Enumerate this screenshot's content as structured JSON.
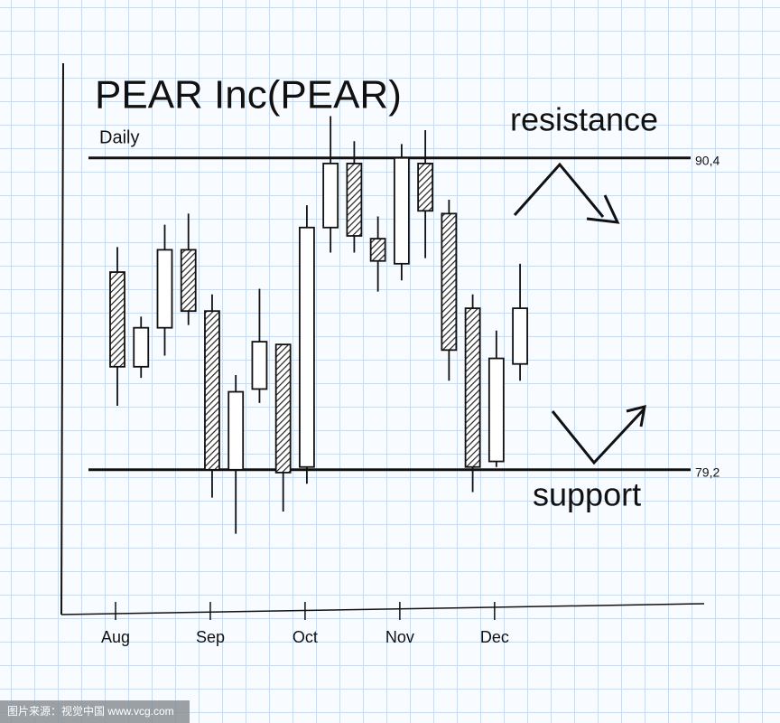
{
  "chart_data": {
    "type": "candlestick",
    "title": "PEAR Inc(PEAR)",
    "subtitle": "Daily",
    "categories": [
      "Aug",
      null,
      null,
      null,
      "Sep",
      null,
      null,
      null,
      "Oct",
      null,
      null,
      null,
      "Nov",
      null,
      null,
      null,
      "Dec",
      null
    ],
    "open": [
      86.3,
      82.9,
      84.3,
      87.1,
      84.9,
      79.2,
      82.1,
      83.7,
      79.3,
      87.9,
      90.2,
      87.5,
      86.6,
      90.2,
      88.4,
      85.0,
      79.5,
      83.0
    ],
    "high": [
      87.2,
      84.7,
      88.0,
      88.4,
      85.5,
      82.6,
      85.7,
      83.7,
      88.7,
      91.9,
      91.0,
      88.3,
      90.9,
      91.4,
      88.9,
      85.5,
      84.2,
      86.6
    ],
    "low": [
      81.5,
      82.5,
      83.3,
      84.4,
      78.2,
      76.9,
      81.6,
      77.7,
      78.7,
      87.0,
      87.0,
      85.6,
      86.0,
      86.8,
      82.4,
      78.4,
      79.3,
      82.4
    ],
    "close": [
      82.9,
      84.3,
      87.1,
      84.9,
      79.2,
      82.0,
      83.8,
      79.1,
      87.9,
      90.2,
      87.6,
      86.7,
      90.4,
      88.5,
      83.5,
      79.3,
      83.2,
      85.0
    ],
    "up_color": "#ffffff",
    "down_color": "#333333",
    "ylim": [
      74,
      93.8
    ],
    "levels": [
      {
        "name": "resistance",
        "value": 90.4,
        "label": "90,4"
      },
      {
        "name": "support",
        "value": 79.2,
        "label": "79,2"
      }
    ],
    "watermark": "图片来源：视觉中国 www.vcg.com"
  }
}
